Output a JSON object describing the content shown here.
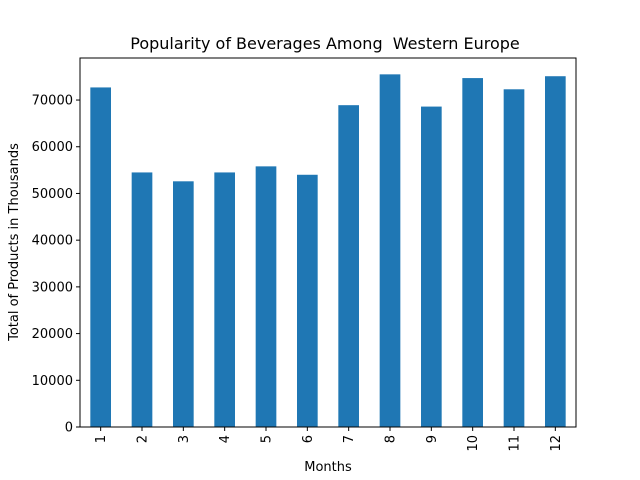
{
  "chart_data": {
    "type": "bar",
    "title": "Popularity of Beverages Among  Western Europe",
    "xlabel": "Months",
    "ylabel": "Total of Products in Thousands",
    "categories": [
      "1",
      "2",
      "3",
      "4",
      "5",
      "6",
      "7",
      "8",
      "9",
      "10",
      "11",
      "12"
    ],
    "values": [
      72700,
      54500,
      52600,
      54500,
      55800,
      54000,
      68900,
      75500,
      68600,
      74700,
      72300,
      75100
    ],
    "ylim": [
      0,
      79000
    ],
    "yticks": [
      0,
      10000,
      20000,
      30000,
      40000,
      50000,
      60000,
      70000
    ],
    "ytick_labels": [
      "0",
      "10000",
      "20000",
      "30000",
      "40000",
      "50000",
      "60000",
      "70000"
    ],
    "bar_color": "#1f77b4",
    "grid": false,
    "legend": false
  }
}
